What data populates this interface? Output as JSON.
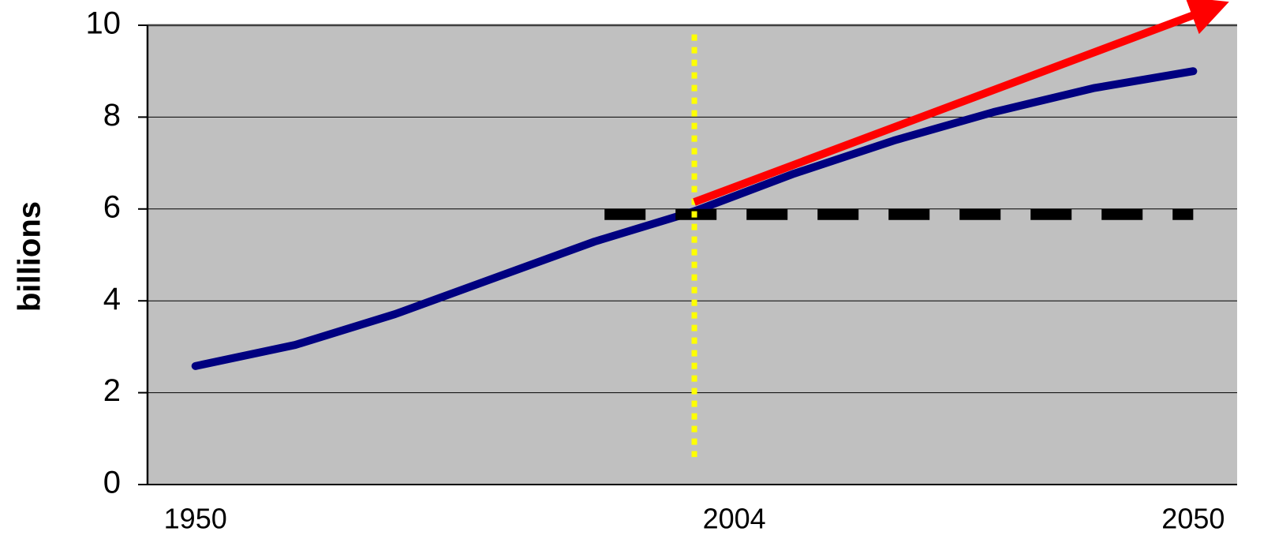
{
  "chart_data": {
    "type": "line",
    "y_label": "billions",
    "xlim": [
      1945.2,
      2054.4
    ],
    "xticks": [
      1950,
      2004,
      2050
    ],
    "ylim": [
      0,
      10
    ],
    "yticks": [
      0,
      2,
      4,
      6,
      8,
      10
    ],
    "grid": true,
    "series": [
      {
        "color": "#000080",
        "style": "solid",
        "x": [
          1950,
          1960,
          1970,
          1980,
          1990,
          2000,
          2010,
          2020,
          2030,
          2040,
          2050
        ],
        "values": [
          2.58,
          3.04,
          3.71,
          4.5,
          5.29,
          5.95,
          6.77,
          7.49,
          8.11,
          8.63,
          9.0
        ]
      },
      {
        "color": "#000000",
        "style": "dashed",
        "x": [
          1991,
          2050
        ],
        "values": [
          5.88,
          5.88
        ]
      },
      {
        "color": "#ffff00",
        "style": "dotted",
        "x": [
          2000,
          2000
        ],
        "values": [
          9.8,
          0.6
        ]
      },
      {
        "color": "#ff0000",
        "style": "arrow",
        "x": [
          2000,
          2051
        ],
        "values": [
          6.15,
          10.3
        ]
      }
    ]
  }
}
